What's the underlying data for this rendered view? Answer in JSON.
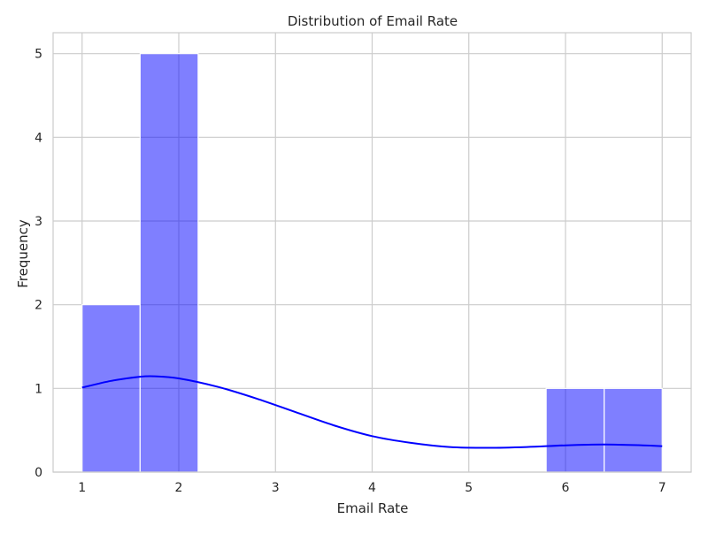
{
  "chart_data": {
    "type": "bar",
    "title": "Distribution of Email Rate",
    "xlabel": "Email Rate",
    "ylabel": "Frequency",
    "xlim": [
      0.7,
      7.3
    ],
    "ylim": [
      0,
      5.25
    ],
    "xticks": [
      1,
      2,
      3,
      4,
      5,
      6,
      7
    ],
    "yticks": [
      0,
      1,
      2,
      3,
      4,
      5
    ],
    "grid": true,
    "bar_color": "#0000ff",
    "bar_opacity": 0.5,
    "kde_color": "#0000ff",
    "bins": [
      {
        "x0": 1.0,
        "x1": 1.6,
        "count": 2
      },
      {
        "x0": 1.6,
        "x1": 2.2,
        "count": 5
      },
      {
        "x0": 2.2,
        "x1": 2.8,
        "count": 0
      },
      {
        "x0": 2.8,
        "x1": 3.4,
        "count": 0
      },
      {
        "x0": 3.4,
        "x1": 4.0,
        "count": 0
      },
      {
        "x0": 4.0,
        "x1": 4.6,
        "count": 0
      },
      {
        "x0": 4.6,
        "x1": 5.2,
        "count": 0
      },
      {
        "x0": 5.2,
        "x1": 5.8,
        "count": 0
      },
      {
        "x0": 5.8,
        "x1": 6.4,
        "count": 1
      },
      {
        "x0": 6.4,
        "x1": 7.0,
        "count": 1
      }
    ],
    "kde": {
      "x": [
        1.0,
        1.3,
        1.6,
        1.75,
        2.0,
        2.4,
        2.8,
        3.2,
        3.6,
        4.0,
        4.4,
        4.8,
        5.2,
        5.6,
        6.0,
        6.4,
        6.8,
        7.0
      ],
      "y": [
        1.01,
        1.09,
        1.14,
        1.145,
        1.12,
        1.02,
        0.88,
        0.72,
        0.56,
        0.43,
        0.35,
        0.3,
        0.29,
        0.3,
        0.32,
        0.33,
        0.32,
        0.31
      ]
    }
  }
}
